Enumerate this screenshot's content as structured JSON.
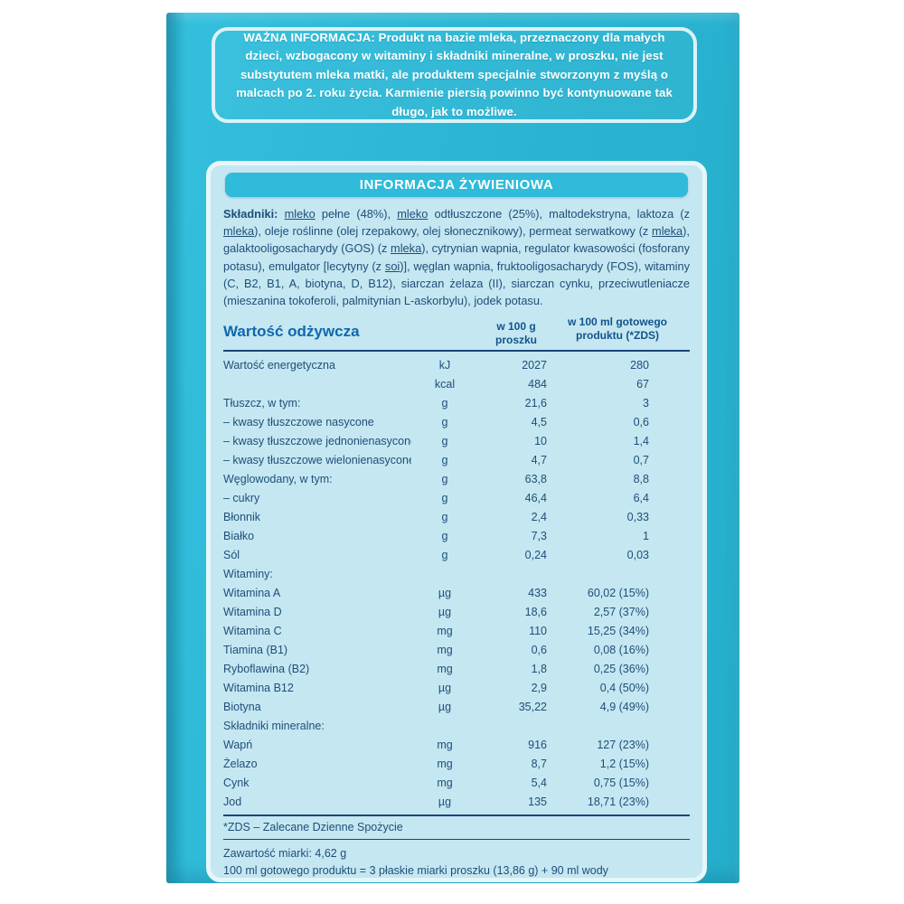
{
  "colors": {
    "package_teal": "#2ab6d4",
    "panel_bg": "#c4e7f1",
    "panel_border": "#e7f6fa",
    "header_bar": "#2fbbd9",
    "text_navy": "#1f4e79",
    "heading_blue": "#1068ae",
    "rule_navy": "#1a4677",
    "white": "#ffffff"
  },
  "warning_box": {
    "text": "WAŻNA INFORMACJA: Produkt na bazie mleka, przeznaczony dla małych dzieci, wzbogacony w witaminy i składniki mineralne, w proszku, nie jest substytutem mleka matki, ale produktem specjalnie stworzonym z myślą o malcach po 2. roku życia. Karmienie piersią powinno być kontynuowane tak długo, jak to możliwe."
  },
  "nutrition_header": "INFORMACJA ŻYWIENIOWA",
  "ingredients": {
    "segments": [
      {
        "t": "Składniki: ",
        "b": true
      },
      {
        "t": "mleko",
        "u": true
      },
      {
        "t": " pełne (48%), "
      },
      {
        "t": "mleko",
        "u": true
      },
      {
        "t": " odtłuszczone (25%), maltodekstryna, laktoza (z "
      },
      {
        "t": "mleka",
        "u": true
      },
      {
        "t": "), oleje roślinne (olej rzepakowy, olej słonecznikowy), permeat serwatkowy (z "
      },
      {
        "t": "mleka",
        "u": true
      },
      {
        "t": "), galaktooligosacharydy (GOS) (z "
      },
      {
        "t": "mleka",
        "u": true
      },
      {
        "t": "), cytrynian wapnia, regulator kwasowości (fosforany potasu), emulgator [lecytyny (z "
      },
      {
        "t": "soi",
        "u": true
      },
      {
        "t": ")], węglan wapnia, fruktooligosacharydy (FOS), witaminy (C, B2, B1, A, biotyna, D, B12), siarczan żelaza (II), siarczan cynku, przeciwutleniacze (mieszanina tokoferoli, palmitynian L-askorbylu), jodek potasu."
      }
    ]
  },
  "table": {
    "title": "Wartość odżywcza",
    "col_g_header": "w 100 g proszku",
    "col_ml_header": "w 100 ml gotowego produktu (*ZDS)",
    "rows": [
      {
        "label": "Wartość energetyczna",
        "unit": "kJ",
        "g": "2027",
        "ml": "280"
      },
      {
        "label": "",
        "unit": "kcal",
        "g": "484",
        "ml": "67"
      },
      {
        "label": "Tłuszcz, w tym:",
        "unit": "g",
        "g": "21,6",
        "ml": "3"
      },
      {
        "label": "– kwasy tłuszczowe nasycone",
        "unit": "g",
        "g": "4,5",
        "ml": "0,6"
      },
      {
        "label": "– kwasy tłuszczowe jednonienasycone",
        "unit": "g",
        "g": "10",
        "ml": "1,4"
      },
      {
        "label": "– kwasy tłuszczowe wielonienasycone",
        "unit": "g",
        "g": "4,7",
        "ml": "0,7"
      },
      {
        "label": "Węglowodany, w tym:",
        "unit": "g",
        "g": "63,8",
        "ml": "8,8"
      },
      {
        "label": "– cukry",
        "unit": "g",
        "g": "46,4",
        "ml": "6,4"
      },
      {
        "label": "Błonnik",
        "unit": "g",
        "g": "2,4",
        "ml": "0,33"
      },
      {
        "label": "Białko",
        "unit": "g",
        "g": "7,3",
        "ml": "1"
      },
      {
        "label": "Sól",
        "unit": "g",
        "g": "0,24",
        "ml": "0,03"
      },
      {
        "label": "Witaminy:",
        "unit": "",
        "g": "",
        "ml": "",
        "section": true
      },
      {
        "label": "Witamina A",
        "unit": "µg",
        "g": "433",
        "ml": "60,02 (15%)"
      },
      {
        "label": "Witamina D",
        "unit": "µg",
        "g": "18,6",
        "ml": "2,57 (37%)"
      },
      {
        "label": "Witamina C",
        "unit": "mg",
        "g": "110",
        "ml": "15,25 (34%)"
      },
      {
        "label": "Tiamina (B1)",
        "unit": "mg",
        "g": "0,6",
        "ml": "0,08 (16%)"
      },
      {
        "label": "Ryboflawina (B2)",
        "unit": "mg",
        "g": "1,8",
        "ml": "0,25 (36%)"
      },
      {
        "label": "Witamina B12",
        "unit": "µg",
        "g": "2,9",
        "ml": "0,4 (50%)"
      },
      {
        "label": "Biotyna",
        "unit": "µg",
        "g": "35,22",
        "ml": "4,9 (49%)"
      },
      {
        "label": "Składniki mineralne:",
        "unit": "",
        "g": "",
        "ml": "",
        "section": true
      },
      {
        "label": "Wapń",
        "unit": "mg",
        "g": "916",
        "ml": "127 (23%)"
      },
      {
        "label": "Żelazo",
        "unit": "mg",
        "g": "8,7",
        "ml": "1,2 (15%)"
      },
      {
        "label": "Cynk",
        "unit": "mg",
        "g": "5,4",
        "ml": "0,75 (15%)"
      },
      {
        "label": "Jod",
        "unit": "µg",
        "g": "135",
        "ml": "18,71 (23%)"
      }
    ],
    "footnote": "*ZDS – Zalecane Dzienne Spożycie"
  },
  "footer": {
    "line1": "Zawartość miarki: 4,62 g",
    "line2": "100 ml gotowego produktu = 3 płaskie miarki proszku (13,86 g) + 90 ml wody"
  }
}
